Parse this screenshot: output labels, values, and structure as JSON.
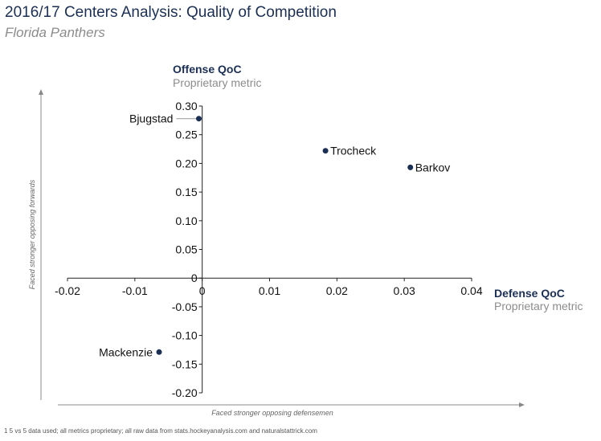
{
  "header": {
    "title": "2016/17 Centers Analysis: Quality of Competition",
    "subtitle": "Florida Panthers"
  },
  "footnote": "1 5 vs 5 data used; all metrics proprietary; all raw data from stats.hockeyanalysis.com and naturalstattrick.com",
  "colors": {
    "title": "#1b2f55",
    "point": "#1b2f55",
    "muted": "#8c8c8c",
    "axis": "#222222"
  },
  "chart_data": {
    "type": "scatter",
    "x_axis": {
      "title": "Defense QoC",
      "subtitle": "Proprietary metric",
      "range": [
        -0.02,
        0.04
      ],
      "ticks": [
        -0.02,
        -0.01,
        0,
        0.01,
        0.02,
        0.03,
        0.04
      ],
      "tick_labels": [
        "-0.02",
        "-0.01",
        "0",
        "0.01",
        "0.02",
        "0.03",
        "0.04"
      ]
    },
    "y_axis": {
      "title": "Offense QoC",
      "subtitle": "Proprietary metric",
      "range": [
        -0.2,
        0.3
      ],
      "ticks": [
        0.3,
        0.25,
        0.2,
        0.15,
        0.1,
        0.05,
        0,
        -0.05,
        -0.1,
        -0.15,
        -0.2
      ],
      "tick_labels": [
        "0.30",
        "0.25",
        "0.20",
        "0.15",
        "0.10",
        "0.05",
        "0",
        "-0.05",
        "-0.10",
        "-0.15",
        "-0.20"
      ]
    },
    "guides": {
      "x": "Faced stronger opposing defensemen",
      "y": "Faced stronger opposing forwards"
    },
    "points": [
      {
        "name": "Bjugstad",
        "x": -0.0005,
        "y": 0.278,
        "label_side": "left",
        "leader": true
      },
      {
        "name": "Trocheck",
        "x": 0.0183,
        "y": 0.222,
        "label_side": "right",
        "leader": false
      },
      {
        "name": "Barkov",
        "x": 0.0309,
        "y": 0.193,
        "label_side": "right",
        "leader": false
      },
      {
        "name": "Mackenzie",
        "x": -0.0064,
        "y": -0.129,
        "label_side": "left",
        "leader": false
      }
    ]
  }
}
